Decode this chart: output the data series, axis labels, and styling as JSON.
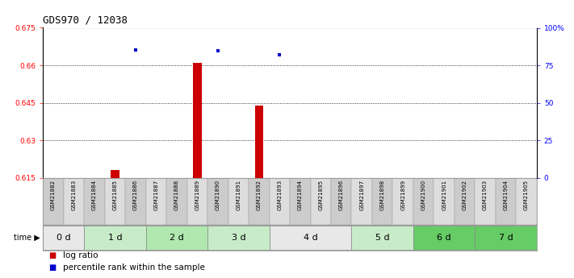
{
  "title": "GDS970 / 12038",
  "samples": [
    "GSM21882",
    "GSM21883",
    "GSM21884",
    "GSM21885",
    "GSM21886",
    "GSM21887",
    "GSM21888",
    "GSM21889",
    "GSM21890",
    "GSM21891",
    "GSM21892",
    "GSM21893",
    "GSM21894",
    "GSM21895",
    "GSM21896",
    "GSM21897",
    "GSM21898",
    "GSM21899",
    "GSM21900",
    "GSM21901",
    "GSM21902",
    "GSM21903",
    "GSM21904",
    "GSM21905"
  ],
  "log_ratio": [
    null,
    null,
    null,
    0.618,
    null,
    null,
    null,
    0.661,
    null,
    null,
    0.644,
    null,
    null,
    null,
    null,
    null,
    null,
    null,
    null,
    null,
    null,
    null,
    null,
    null
  ],
  "percentile_rank": [
    null,
    null,
    null,
    null,
    0.85,
    null,
    null,
    null,
    0.845,
    null,
    null,
    0.82,
    null,
    null,
    null,
    null,
    null,
    null,
    null,
    null,
    null,
    null,
    null,
    null
  ],
  "time_groups": [
    {
      "label": "0 d",
      "start": 0,
      "end": 2,
      "color": "#e8e8e8"
    },
    {
      "label": "1 d",
      "start": 2,
      "end": 5,
      "color": "#c8ecc8"
    },
    {
      "label": "2 d",
      "start": 5,
      "end": 8,
      "color": "#b0e8b0"
    },
    {
      "label": "3 d",
      "start": 8,
      "end": 11,
      "color": "#c8ecc8"
    },
    {
      "label": "4 d",
      "start": 11,
      "end": 15,
      "color": "#e8e8e8"
    },
    {
      "label": "5 d",
      "start": 15,
      "end": 18,
      "color": "#c8ecc8"
    },
    {
      "label": "6 d",
      "start": 18,
      "end": 21,
      "color": "#66cc66"
    },
    {
      "label": "7 d",
      "start": 21,
      "end": 24,
      "color": "#66cc66"
    }
  ],
  "ylim": [
    0.615,
    0.675
  ],
  "yticks": [
    0.615,
    0.63,
    0.645,
    0.66,
    0.675
  ],
  "right_yticks": [
    0,
    25,
    50,
    75,
    100
  ],
  "right_ylim": [
    0,
    100
  ],
  "bar_color": "#cc0000",
  "point_color": "#0000cc",
  "background_color": "#ffffff",
  "grid_color": "#000000",
  "title_fontsize": 9,
  "tick_fontsize": 6.5,
  "label_fontsize": 5,
  "time_fontsize": 8,
  "legend_fontsize": 7.5
}
